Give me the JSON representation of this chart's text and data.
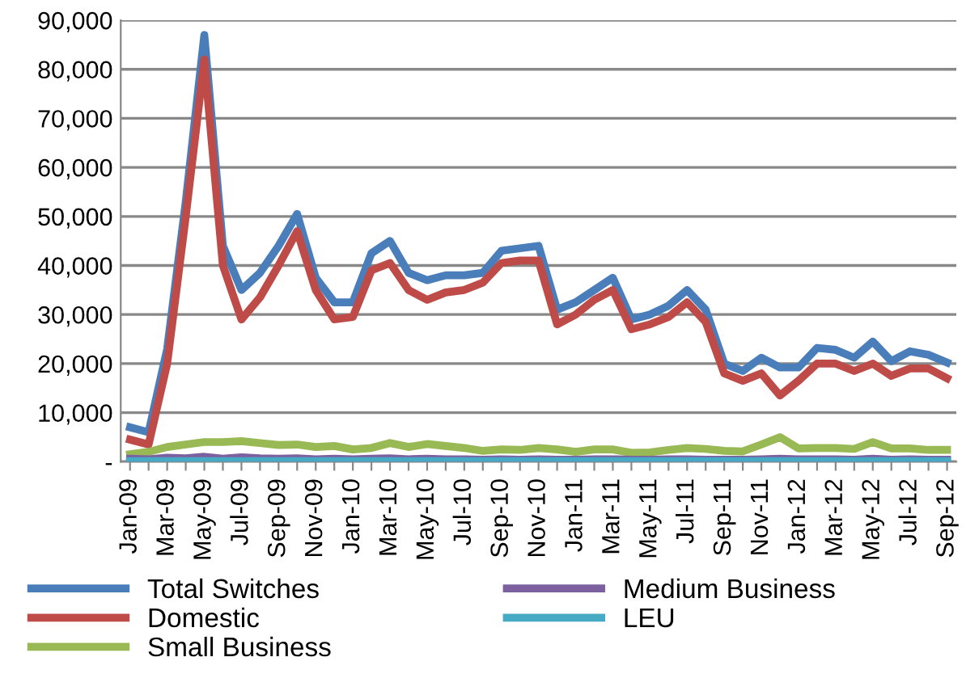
{
  "chart_data": {
    "type": "line",
    "categories": [
      "Jan-09",
      null,
      "Mar-09",
      null,
      "May-09",
      null,
      "Jul-09",
      null,
      "Sep-09",
      null,
      "Nov-09",
      null,
      "Jan-10",
      null,
      "Mar-10",
      null,
      "May-10",
      null,
      "Jul-10",
      null,
      "Sep-10",
      null,
      "Nov-10",
      null,
      "Jan-11",
      null,
      "Mar-11",
      null,
      "May-11",
      null,
      "Jul-11",
      null,
      "Sep-11",
      null,
      "Nov-11",
      null,
      "Jan-12",
      null,
      "Mar-12",
      null,
      "May-12",
      null,
      "Jul-12",
      null,
      "Sep-12"
    ],
    "series": [
      {
        "name": "Total Switches",
        "color": "#4a7ebb",
        "values": [
          7000,
          6000,
          23000,
          53000,
          87000,
          44000,
          35000,
          38500,
          44000,
          50500,
          37500,
          32500,
          32500,
          42500,
          45000,
          38500,
          37000,
          38000,
          38000,
          38500,
          43000,
          43500,
          44000,
          31000,
          32500,
          35000,
          37500,
          29000,
          30000,
          31800,
          35000,
          31000,
          20000,
          18500,
          21200,
          19200,
          19200,
          23200,
          22800,
          21200,
          24500,
          20500,
          22500,
          21800,
          20200
        ]
      },
      {
        "name": "Domestic",
        "color": "#be4b48",
        "values": [
          4500,
          3500,
          20000,
          50000,
          82000,
          40000,
          29000,
          33500,
          40000,
          47000,
          35000,
          29000,
          29500,
          39000,
          40500,
          35000,
          33000,
          34500,
          35000,
          36500,
          40500,
          41000,
          41000,
          28000,
          30000,
          33000,
          35000,
          27000,
          28000,
          29500,
          32500,
          28500,
          18000,
          16500,
          18000,
          13500,
          16500,
          20000,
          20000,
          18500,
          20000,
          17500,
          19000,
          19000,
          17000
        ]
      },
      {
        "name": "Small Business",
        "color": "#98b954",
        "values": [
          1500,
          2000,
          3000,
          3500,
          4000,
          4000,
          4200,
          3800,
          3400,
          3500,
          3000,
          3200,
          2500,
          2800,
          3800,
          3000,
          3600,
          3200,
          2800,
          2200,
          2500,
          2400,
          2800,
          2500,
          2000,
          2500,
          2500,
          1800,
          1900,
          2400,
          2800,
          2600,
          2200,
          2100,
          3500,
          5000,
          2700,
          2800,
          2800,
          2600,
          4000,
          2700,
          2700,
          2400,
          2400
        ]
      },
      {
        "name": "Medium Business",
        "color": "#7d60a0",
        "values": [
          600,
          500,
          800,
          700,
          1000,
          600,
          900,
          700,
          600,
          700,
          500,
          600,
          500,
          600,
          700,
          500,
          600,
          500,
          500,
          400,
          500,
          400,
          500,
          400,
          400,
          500,
          500,
          400,
          400,
          500,
          500,
          400,
          400,
          400,
          500,
          600,
          500,
          500,
          500,
          400,
          600,
          400,
          500,
          400,
          400
        ]
      },
      {
        "name": "LEU",
        "color": "#46aac5",
        "values": [
          100,
          100,
          100,
          100,
          100,
          100,
          100,
          100,
          100,
          100,
          100,
          100,
          100,
          100,
          100,
          100,
          100,
          100,
          100,
          100,
          100,
          100,
          100,
          100,
          100,
          100,
          100,
          100,
          100,
          100,
          100,
          100,
          100,
          100,
          100,
          100,
          100,
          100,
          100,
          100,
          100,
          100,
          100,
          100,
          100
        ]
      }
    ],
    "ylim": [
      0,
      90000
    ],
    "yticks": [
      {
        "value": 0,
        "label": "-"
      },
      {
        "value": 10000,
        "label": "10,000"
      },
      {
        "value": 20000,
        "label": "20,000"
      },
      {
        "value": 30000,
        "label": "30,000"
      },
      {
        "value": 40000,
        "label": "40,000"
      },
      {
        "value": 50000,
        "label": "50,000"
      },
      {
        "value": 60000,
        "label": "60,000"
      },
      {
        "value": 70000,
        "label": "70,000"
      },
      {
        "value": 80000,
        "label": "80,000"
      },
      {
        "value": 90000,
        "label": "90,000"
      }
    ],
    "grid": "y",
    "legend": "bottom",
    "marker": "none",
    "line_style": "solid"
  }
}
